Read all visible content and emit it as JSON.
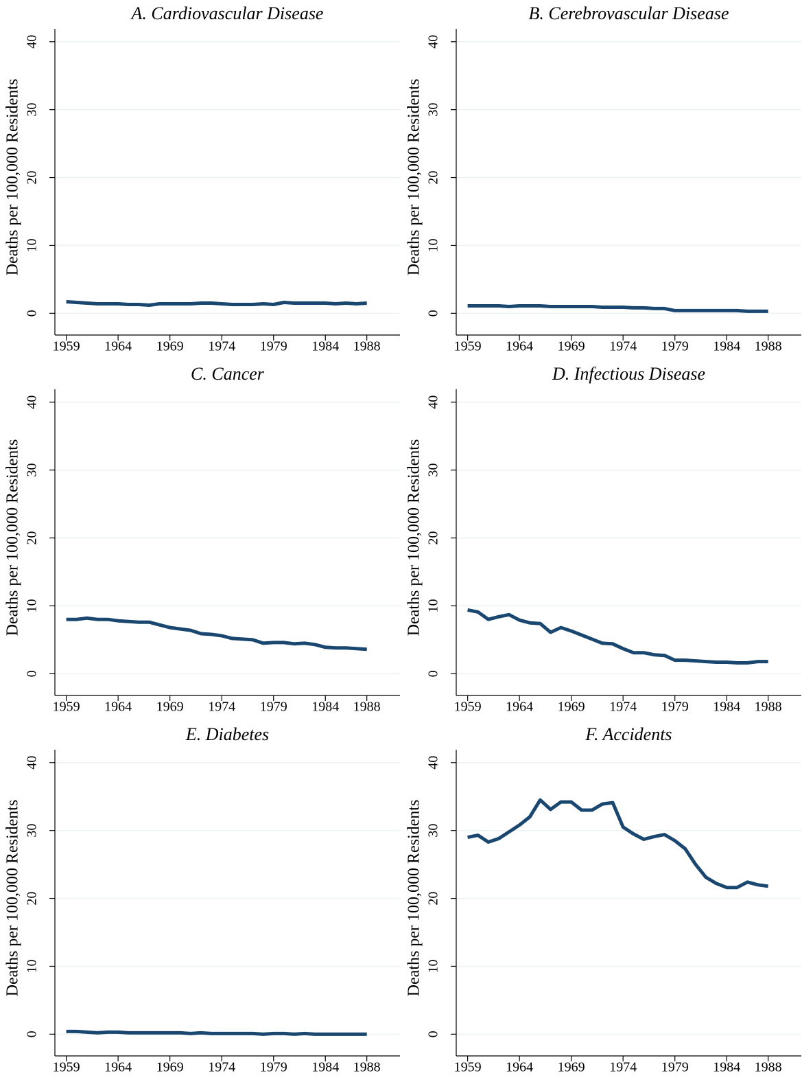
{
  "chart_data": [
    {
      "type": "line",
      "title": "A. Cardiovascular Disease",
      "ylabel": "Deaths per 100,000 Residents",
      "color": "#1a476f",
      "grid": true,
      "x": [
        1959,
        1960,
        1961,
        1962,
        1963,
        1964,
        1965,
        1966,
        1967,
        1968,
        1969,
        1970,
        1971,
        1972,
        1973,
        1974,
        1975,
        1976,
        1977,
        1978,
        1979,
        1980,
        1981,
        1982,
        1983,
        1984,
        1985,
        1986,
        1987,
        1988
      ],
      "values": [
        1.7,
        1.6,
        1.5,
        1.4,
        1.4,
        1.4,
        1.3,
        1.3,
        1.2,
        1.4,
        1.4,
        1.4,
        1.4,
        1.5,
        1.5,
        1.4,
        1.3,
        1.3,
        1.3,
        1.4,
        1.3,
        1.6,
        1.5,
        1.5,
        1.5,
        1.5,
        1.4,
        1.5,
        1.4,
        1.5
      ],
      "xlim": [
        1957.9,
        1991.2
      ],
      "xticks": [
        1959,
        1964,
        1969,
        1974,
        1979,
        1984,
        1988
      ],
      "ylim": [
        -3.2,
        41.9
      ],
      "yticks": [
        0,
        10,
        20,
        30,
        40
      ]
    },
    {
      "type": "line",
      "title": "B. Cerebrovascular Disease",
      "ylabel": "Deaths per 100,000 Residents",
      "color": "#1a476f",
      "grid": true,
      "x": [
        1959,
        1960,
        1961,
        1962,
        1963,
        1964,
        1965,
        1966,
        1967,
        1968,
        1969,
        1970,
        1971,
        1972,
        1973,
        1974,
        1975,
        1976,
        1977,
        1978,
        1979,
        1980,
        1981,
        1982,
        1983,
        1984,
        1985,
        1986,
        1987,
        1988
      ],
      "values": [
        1.1,
        1.1,
        1.1,
        1.1,
        1.0,
        1.1,
        1.1,
        1.1,
        1.0,
        1.0,
        1.0,
        1.0,
        1.0,
        0.9,
        0.9,
        0.9,
        0.8,
        0.8,
        0.7,
        0.7,
        0.4,
        0.4,
        0.4,
        0.4,
        0.4,
        0.4,
        0.4,
        0.3,
        0.3,
        0.3
      ],
      "xlim": [
        1957.9,
        1991.2
      ],
      "xticks": [
        1959,
        1964,
        1969,
        1974,
        1979,
        1984,
        1988
      ],
      "ylim": [
        -3.2,
        41.9
      ],
      "yticks": [
        0,
        10,
        20,
        30,
        40
      ]
    },
    {
      "type": "line",
      "title": "C. Cancer",
      "ylabel": "Deaths per 100,000 Residents",
      "color": "#1a476f",
      "grid": true,
      "x": [
        1959,
        1960,
        1961,
        1962,
        1963,
        1964,
        1965,
        1966,
        1967,
        1968,
        1969,
        1970,
        1971,
        1972,
        1973,
        1974,
        1975,
        1976,
        1977,
        1978,
        1979,
        1980,
        1981,
        1982,
        1983,
        1984,
        1985,
        1986,
        1987,
        1988
      ],
      "values": [
        8.0,
        8.0,
        8.2,
        8.0,
        8.0,
        7.8,
        7.7,
        7.6,
        7.6,
        7.2,
        6.8,
        6.6,
        6.4,
        5.9,
        5.8,
        5.6,
        5.2,
        5.1,
        5.0,
        4.5,
        4.6,
        4.6,
        4.4,
        4.5,
        4.3,
        3.9,
        3.8,
        3.8,
        3.7,
        3.6
      ],
      "xlim": [
        1957.9,
        1991.2
      ],
      "xticks": [
        1959,
        1964,
        1969,
        1974,
        1979,
        1984,
        1988
      ],
      "ylim": [
        -3.2,
        41.9
      ],
      "yticks": [
        0,
        10,
        20,
        30,
        40
      ]
    },
    {
      "type": "line",
      "title": "D. Infectious Disease",
      "ylabel": "Deaths per 100,000 Residents",
      "color": "#1a476f",
      "grid": true,
      "x": [
        1959,
        1960,
        1961,
        1962,
        1963,
        1964,
        1965,
        1966,
        1967,
        1968,
        1969,
        1970,
        1971,
        1972,
        1973,
        1974,
        1975,
        1976,
        1977,
        1978,
        1979,
        1980,
        1981,
        1982,
        1983,
        1984,
        1985,
        1986,
        1987,
        1988
      ],
      "values": [
        9.4,
        9.1,
        8.0,
        8.4,
        8.7,
        7.9,
        7.5,
        7.4,
        6.1,
        6.8,
        6.3,
        5.7,
        5.1,
        4.5,
        4.4,
        3.7,
        3.1,
        3.1,
        2.8,
        2.7,
        2.0,
        2.0,
        1.9,
        1.8,
        1.7,
        1.7,
        1.6,
        1.6,
        1.8,
        1.8
      ],
      "xlim": [
        1957.9,
        1991.2
      ],
      "xticks": [
        1959,
        1964,
        1969,
        1974,
        1979,
        1984,
        1988
      ],
      "ylim": [
        -3.2,
        41.9
      ],
      "yticks": [
        0,
        10,
        20,
        30,
        40
      ]
    },
    {
      "type": "line",
      "title": "E. Diabetes",
      "ylabel": "Deaths per 100,000 Residents",
      "color": "#1a476f",
      "grid": true,
      "x": [
        1959,
        1960,
        1961,
        1962,
        1963,
        1964,
        1965,
        1966,
        1967,
        1968,
        1969,
        1970,
        1971,
        1972,
        1973,
        1974,
        1975,
        1976,
        1977,
        1978,
        1979,
        1980,
        1981,
        1982,
        1983,
        1984,
        1985,
        1986,
        1987,
        1988
      ],
      "values": [
        0.4,
        0.4,
        0.3,
        0.2,
        0.3,
        0.3,
        0.2,
        0.2,
        0.2,
        0.2,
        0.2,
        0.2,
        0.1,
        0.2,
        0.1,
        0.1,
        0.1,
        0.1,
        0.1,
        0.0,
        0.1,
        0.1,
        0.0,
        0.1,
        0.0,
        0.0,
        0.0,
        0.0,
        0.0,
        0.0
      ],
      "xlim": [
        1957.9,
        1991.2
      ],
      "xticks": [
        1959,
        1964,
        1969,
        1974,
        1979,
        1984,
        1988
      ],
      "ylim": [
        -3.2,
        41.9
      ],
      "yticks": [
        0,
        10,
        20,
        30,
        40
      ]
    },
    {
      "type": "line",
      "title": "F. Accidents",
      "ylabel": "Deaths per 100,000 Residents",
      "color": "#1a476f",
      "grid": true,
      "x": [
        1959,
        1960,
        1961,
        1962,
        1963,
        1964,
        1965,
        1966,
        1967,
        1968,
        1969,
        1970,
        1971,
        1972,
        1973,
        1974,
        1975,
        1976,
        1977,
        1978,
        1979,
        1980,
        1981,
        1982,
        1983,
        1984,
        1985,
        1986,
        1987,
        1988
      ],
      "values": [
        29.0,
        29.3,
        28.3,
        28.8,
        29.8,
        30.8,
        32.0,
        34.5,
        33.1,
        34.2,
        34.2,
        33.0,
        33.0,
        33.9,
        34.1,
        30.5,
        29.5,
        28.7,
        29.1,
        29.4,
        28.5,
        27.3,
        25.0,
        23.1,
        22.2,
        21.6,
        21.6,
        22.4,
        22.0,
        21.8
      ],
      "xlim": [
        1957.9,
        1991.2
      ],
      "xticks": [
        1959,
        1964,
        1969,
        1974,
        1979,
        1984,
        1988
      ],
      "ylim": [
        -3.2,
        41.9
      ],
      "yticks": [
        0,
        10,
        20,
        30,
        40
      ]
    }
  ]
}
